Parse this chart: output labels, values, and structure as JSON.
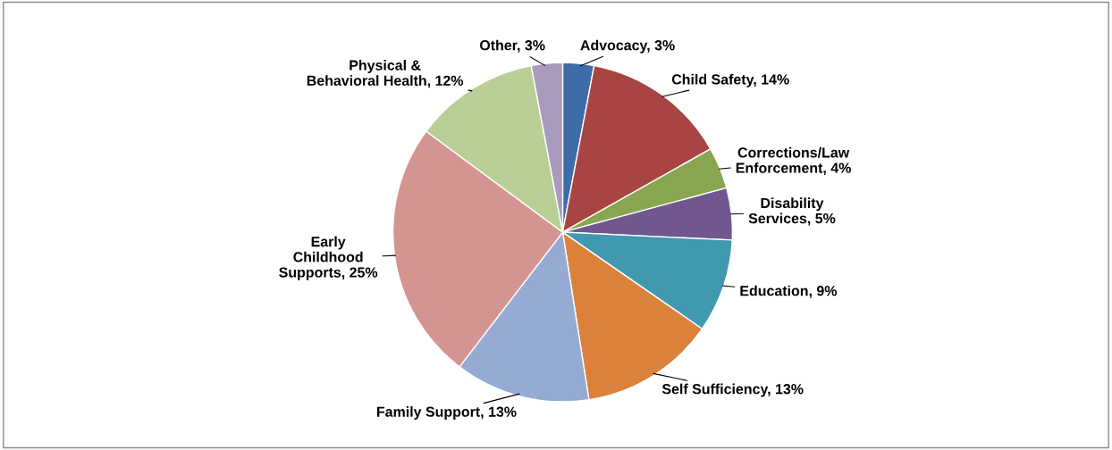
{
  "chart_data": {
    "type": "pie",
    "categories": [
      "Advocacy",
      "Child Safety",
      "Corrections/Law\nEnforcement",
      "Disability\nServices",
      "Education",
      "Self Sufficiency",
      "Family Support",
      "Early\nChildhood\nSupports",
      "Physical &\nBehavioral Health",
      "Other"
    ],
    "values": [
      3,
      14,
      4,
      5,
      9,
      13,
      13,
      25,
      12,
      3
    ],
    "colors": [
      "#3d6ca8",
      "#a84543",
      "#87a64f",
      "#70578f",
      "#4199b0",
      "#da823c",
      "#95abd4",
      "#d49592",
      "#b9cf96",
      "#a99bbd"
    ],
    "value_labels": [
      "3%",
      "14%",
      "4%",
      "5%",
      "9%",
      "13%",
      "13%",
      "25%",
      "12%",
      "3%"
    ],
    "legend": false
  }
}
